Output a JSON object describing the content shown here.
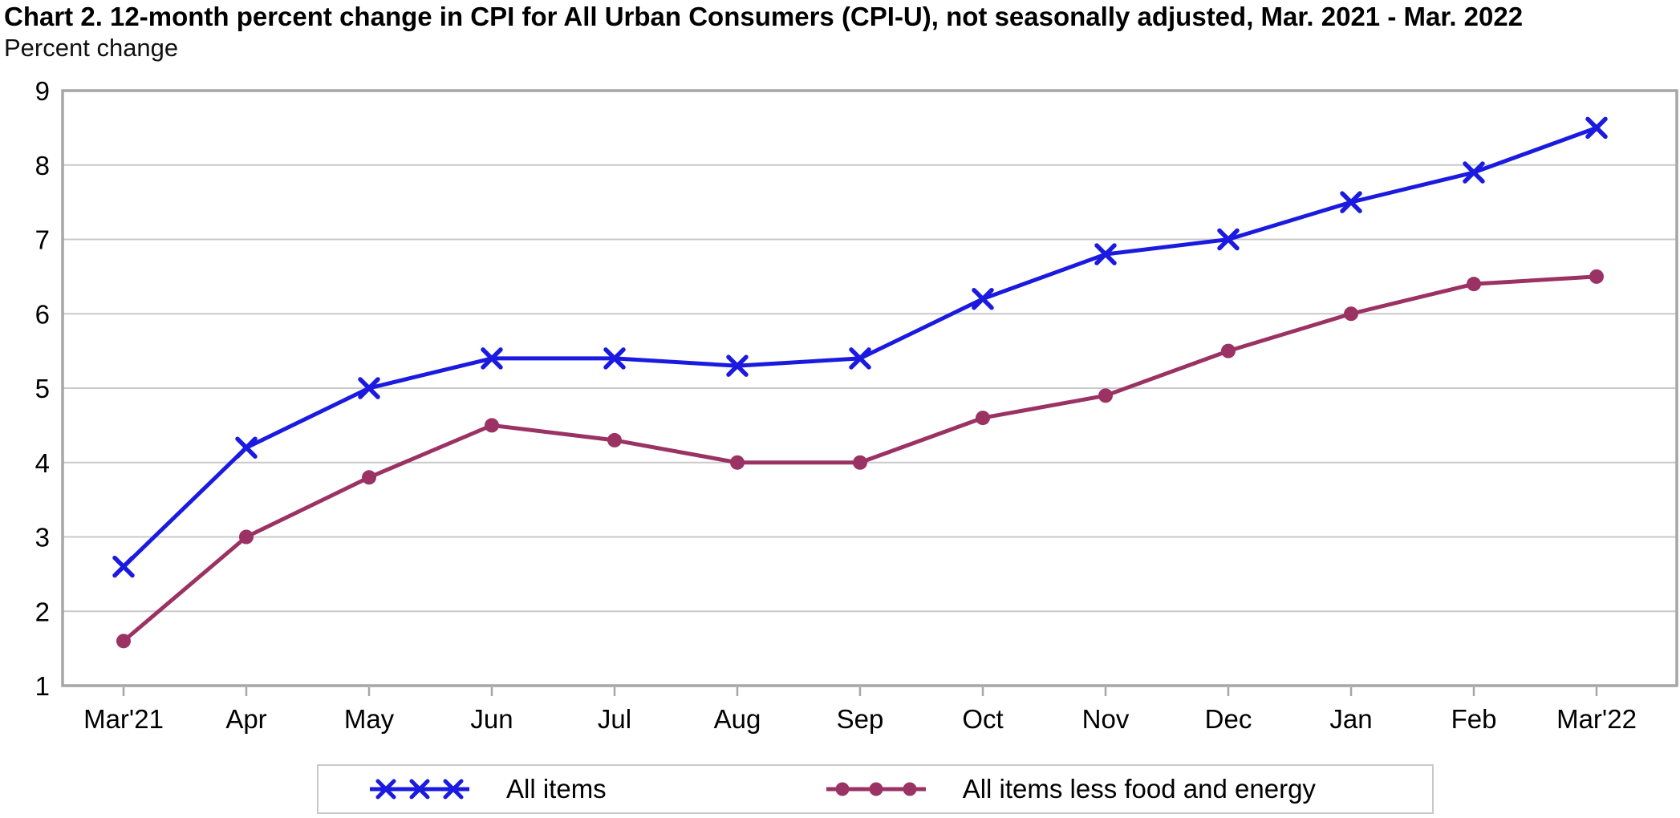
{
  "title": "Chart 2. 12-month percent change in CPI for All Urban Consumers (CPI-U), not seasonally adjusted, Mar. 2021 - Mar. 2022",
  "y_axis_title": "Percent change",
  "colors": {
    "all_items_blue": "#1a1ae0",
    "core_maroon": "#9b3264",
    "grid_line": "#c9c9c9",
    "plot_frame": "#a6a6a6",
    "text": "#000000",
    "legend_border": "#c9c9c9"
  },
  "chart_data": {
    "type": "line",
    "title": "Chart 2. 12-month percent change in CPI for All Urban Consumers (CPI-U), not seasonally adjusted, Mar. 2021 - Mar. 2022",
    "xlabel": "",
    "ylabel": "Percent change",
    "categories": [
      "Mar'21",
      "Apr",
      "May",
      "Jun",
      "Jul",
      "Aug",
      "Sep",
      "Oct",
      "Nov",
      "Dec",
      "Jan",
      "Feb",
      "Mar'22"
    ],
    "series": [
      {
        "name": "All items",
        "marker": "x",
        "color": "#1a1ae0",
        "values": [
          2.6,
          4.2,
          5.0,
          5.4,
          5.4,
          5.3,
          5.4,
          6.2,
          6.8,
          7.0,
          7.5,
          7.9,
          8.5
        ]
      },
      {
        "name": "All items less food and energy",
        "marker": "circle",
        "color": "#9b3264",
        "values": [
          1.6,
          3.0,
          3.8,
          4.5,
          4.3,
          4.0,
          4.0,
          4.6,
          4.9,
          5.5,
          6.0,
          6.4,
          6.5
        ]
      }
    ],
    "ylim": [
      1,
      9
    ],
    "y_ticks": [
      1,
      2,
      3,
      4,
      5,
      6,
      7,
      8,
      9
    ],
    "grid": "horizontal",
    "legend_position": "bottom"
  }
}
